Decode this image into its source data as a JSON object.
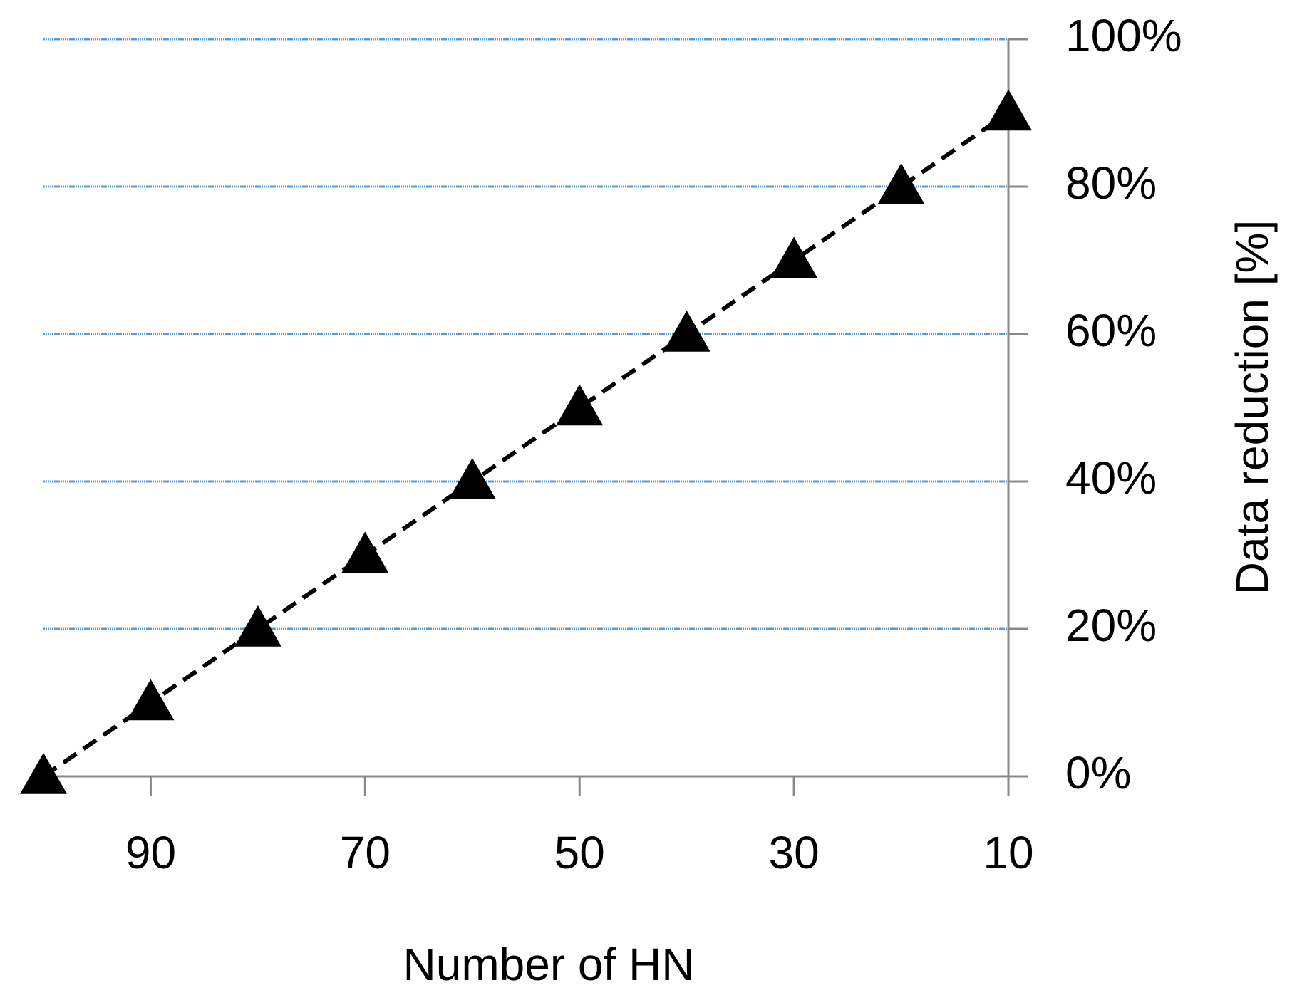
{
  "chart_data": {
    "type": "line",
    "x_label": "Number of HN",
    "y_label": "Data reduction [%]",
    "x": [
      100,
      90,
      80,
      70,
      60,
      50,
      40,
      30,
      20,
      10
    ],
    "values": [
      0,
      10,
      20,
      30,
      40,
      50,
      60,
      70,
      80,
      90
    ],
    "color": "#000000",
    "xlim": [
      100,
      10
    ],
    "xticks": [
      90,
      70,
      50,
      30,
      10
    ],
    "ylim": [
      0,
      100
    ],
    "yticks": [
      {
        "value": 0,
        "label": "0%"
      },
      {
        "value": 20,
        "label": "20%"
      },
      {
        "value": 40,
        "label": "40%"
      },
      {
        "value": 60,
        "label": "60%"
      },
      {
        "value": 80,
        "label": "80%"
      },
      {
        "value": 100,
        "label": "100%"
      }
    ],
    "grid": true,
    "grid_color": "#5b9bd5"
  }
}
